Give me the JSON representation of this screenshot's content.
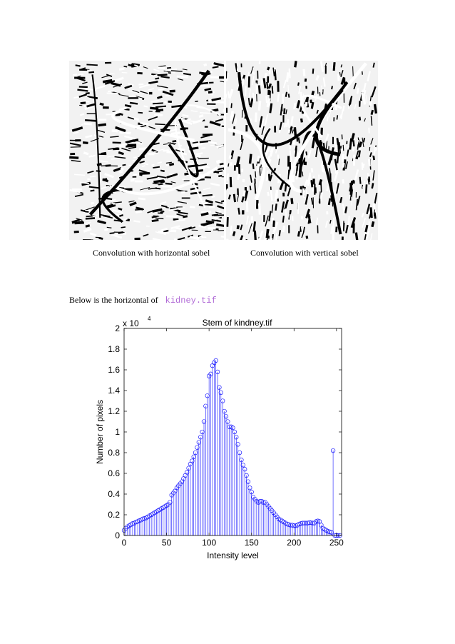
{
  "figures": [
    {
      "caption": "Convolution with horizontal sobel"
    },
    {
      "caption": "Convolution with vertical sobel"
    }
  ],
  "body_text": {
    "prefix": "Below is the horizontal of",
    "code": "kidney.tif"
  },
  "colors": {
    "stem": "#1a1aff",
    "code_text": "#b06ad6"
  },
  "chart_data": {
    "type": "stem",
    "title": "Stem of kindney.tif",
    "xlabel": "Intensity level",
    "ylabel": "Number of pixels",
    "y_exponent_label": "x 10",
    "y_exponent": "4",
    "xlim": [
      0,
      256
    ],
    "ylim": [
      0,
      20000
    ],
    "xticks": [
      0,
      50,
      100,
      150,
      200,
      250
    ],
    "xtick_labels": [
      "0",
      "50",
      "100",
      "150",
      "200",
      "250"
    ],
    "yticks": [
      0,
      2000,
      4000,
      6000,
      8000,
      10000,
      12000,
      14000,
      16000,
      18000,
      20000
    ],
    "ytick_labels": [
      "0",
      "0.2",
      "0.4",
      "0.6",
      "0.8",
      "1",
      "1.2",
      "1.4",
      "1.6",
      "1.8",
      "2"
    ],
    "grid": false,
    "marker": "circle",
    "x": [
      0,
      2,
      4,
      6,
      8,
      10,
      12,
      14,
      16,
      18,
      20,
      22,
      24,
      26,
      28,
      30,
      32,
      34,
      36,
      38,
      40,
      42,
      44,
      46,
      48,
      50,
      52,
      54,
      56,
      58,
      60,
      62,
      64,
      66,
      68,
      70,
      72,
      74,
      76,
      78,
      80,
      82,
      84,
      86,
      88,
      90,
      92,
      94,
      96,
      98,
      100,
      102,
      104,
      106,
      108,
      110,
      112,
      114,
      116,
      118,
      120,
      122,
      124,
      126,
      128,
      130,
      132,
      134,
      136,
      138,
      140,
      142,
      144,
      146,
      148,
      150,
      152,
      154,
      156,
      158,
      160,
      162,
      164,
      166,
      168,
      170,
      172,
      174,
      176,
      178,
      180,
      182,
      184,
      186,
      188,
      190,
      192,
      194,
      196,
      198,
      200,
      202,
      204,
      206,
      208,
      210,
      212,
      214,
      216,
      218,
      220,
      222,
      224,
      226,
      228,
      230,
      232,
      234,
      236,
      238,
      240,
      242,
      244,
      246,
      248,
      250,
      252,
      254
    ],
    "values": [
      500,
      700,
      850,
      950,
      1050,
      1150,
      1200,
      1300,
      1350,
      1450,
      1500,
      1600,
      1650,
      1700,
      1800,
      1900,
      2000,
      2100,
      2200,
      2300,
      2400,
      2500,
      2600,
      2700,
      2800,
      2900,
      3000,
      3200,
      3900,
      4100,
      4300,
      4600,
      4800,
      5000,
      5200,
      5500,
      5800,
      6100,
      6500,
      6900,
      7200,
      7600,
      8000,
      8500,
      9000,
      9500,
      10000,
      11000,
      12500,
      13500,
      15400,
      15600,
      16400,
      16700,
      16900,
      15800,
      14300,
      13800,
      13000,
      12000,
      11500,
      11000,
      10500,
      10500,
      10400,
      10000,
      9500,
      8800,
      8000,
      7300,
      6800,
      6400,
      5800,
      5200,
      4600,
      4200,
      3700,
      3500,
      3300,
      3200,
      3300,
      3300,
      3200,
      3200,
      3000,
      2800,
      2600,
      2400,
      2200,
      2000,
      1800,
      1600,
      1500,
      1400,
      1300,
      1200,
      1100,
      1050,
      1000,
      1000,
      950,
      950,
      1000,
      1100,
      1150,
      1200,
      1200,
      1200,
      1200,
      1250,
      1250,
      1200,
      1200,
      1350,
      1400,
      1350,
      1000,
      700,
      600,
      500,
      400,
      350,
      300,
      8200,
      0,
      0,
      0,
      0
    ],
    "baseline_value": 0
  }
}
